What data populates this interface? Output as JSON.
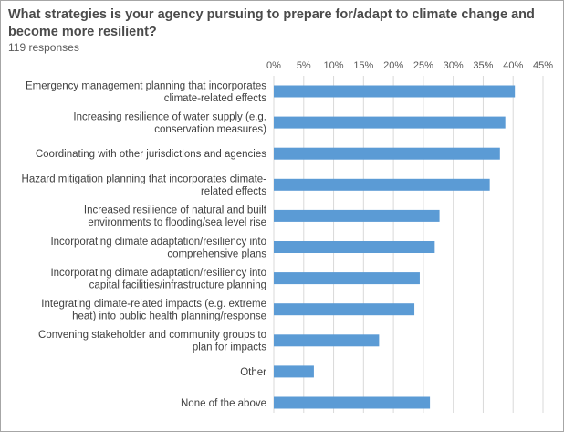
{
  "chart_data": {
    "type": "bar",
    "orientation": "horizontal",
    "title": "What strategies is your agency pursuing to prepare for/adapt to climate change and become more resilient?",
    "subtitle": "119 responses",
    "categories": [
      [
        "Emergency management planning that incorporates",
        "climate-related effects"
      ],
      [
        "Increasing resilience of water supply (e.g.",
        "conservation measures)"
      ],
      [
        "Coordinating with other jurisdictions and agencies"
      ],
      [
        "Hazard mitigation planning that incorporates climate-",
        "related effects"
      ],
      [
        "Increased resilience of natural and built",
        "environments to flooding/sea level rise"
      ],
      [
        "Incorporating climate adaptation/resiliency into",
        "comprehensive plans"
      ],
      [
        "Incorporating climate adaptation/resiliency into",
        "capital facilities/infrastructure planning"
      ],
      [
        "Integrating climate-related impacts (e.g. extreme",
        "heat) into public health planning/response"
      ],
      [
        "Convening stakeholder and community groups to",
        "plan for impacts"
      ],
      [
        "Other"
      ],
      [
        "None of the above"
      ]
    ],
    "values": [
      40.3,
      38.7,
      37.8,
      36.1,
      27.7,
      26.9,
      24.4,
      23.5,
      17.6,
      6.7,
      26.1
    ],
    "xlim": [
      0,
      45
    ],
    "xticks": [
      0,
      5,
      10,
      15,
      20,
      25,
      30,
      35,
      40,
      45
    ],
    "tick_labels": [
      "0%",
      "5%",
      "10%",
      "15%",
      "20%",
      "25%",
      "30%",
      "35%",
      "40%",
      "45%"
    ],
    "axis_position": "top",
    "grid": true,
    "bar_color": "#5b9bd5",
    "grid_color": "#d9d9d9"
  }
}
